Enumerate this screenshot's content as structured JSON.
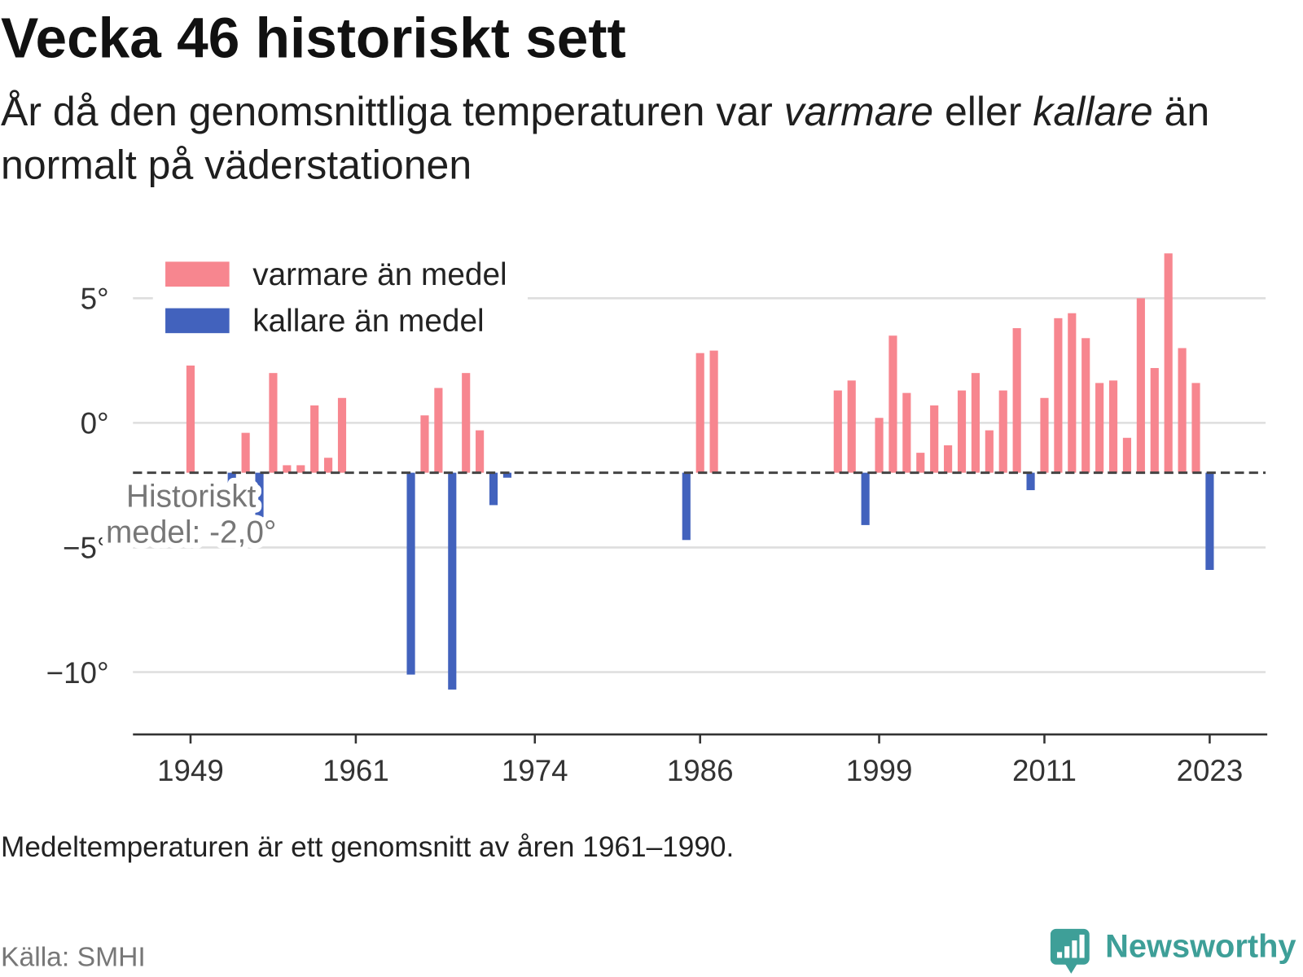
{
  "chart_data": {
    "type": "bar",
    "title": "Vecka 46 historiskt sett",
    "subtitle": [
      "År då den genomsnittliga temperaturen var ",
      "varmare",
      " eller ",
      "kallare",
      " än normalt på väderstationen"
    ],
    "xlim": [
      1945,
      2027
    ],
    "ylim": [
      -12.5,
      7.5
    ],
    "x_ticks": [
      1949,
      1961,
      1974,
      1986,
      1999,
      2011,
      2023
    ],
    "y_ticks": [
      5,
      0,
      -5,
      -10
    ],
    "y_tick_labels": [
      "5°",
      "0°",
      "−5°",
      "−10°"
    ],
    "grid": true,
    "legend_position": "top-left",
    "baseline": -2.0,
    "baseline_label": [
      "Historiskt",
      "medel: -2,0°"
    ],
    "series": [
      {
        "name": "varmare än medel",
        "color": "#f7868f",
        "x": [
          1949,
          1953,
          1955,
          1956,
          1957,
          1958,
          1959,
          1960,
          1966,
          1967,
          1969,
          1970,
          1986,
          1987,
          1996,
          1997,
          1999,
          2000,
          2001,
          2002,
          2003,
          2004,
          2005,
          2006,
          2007,
          2008,
          2009,
          2011,
          2012,
          2013,
          2014,
          2015,
          2016,
          2017,
          2018,
          2019,
          2020,
          2021,
          2022
        ],
        "values": [
          2.3,
          -0.4,
          2.0,
          -1.7,
          -1.7,
          0.7,
          -1.4,
          1.0,
          0.3,
          1.4,
          2.0,
          -0.3,
          2.8,
          2.9,
          1.3,
          1.7,
          0.2,
          3.5,
          1.2,
          -1.2,
          0.7,
          -0.9,
          1.3,
          2.0,
          -0.3,
          1.3,
          3.8,
          1.0,
          4.2,
          4.4,
          3.4,
          1.6,
          1.7,
          -0.6,
          5.0,
          2.2,
          6.8,
          3.0,
          1.6
        ]
      },
      {
        "name": "kallare än medel",
        "color": "#4262bd",
        "x": [
          1952,
          1954,
          1965,
          1968,
          1971,
          1972,
          1985,
          1998,
          2010,
          2023
        ],
        "values": [
          -2.4,
          -3.8,
          -10.1,
          -10.7,
          -3.3,
          -2.2,
          -4.7,
          -4.1,
          -2.7,
          -5.9
        ]
      }
    ],
    "note": "Medeltemperaturen är ett genomsnitt av åren 1961–1990.",
    "source": "Källa: SMHI"
  },
  "branding": {
    "logo_text": "Newsworthy",
    "logo_icon": "bar-chart-speech-bubble-icon",
    "color": "#3e9f98"
  }
}
